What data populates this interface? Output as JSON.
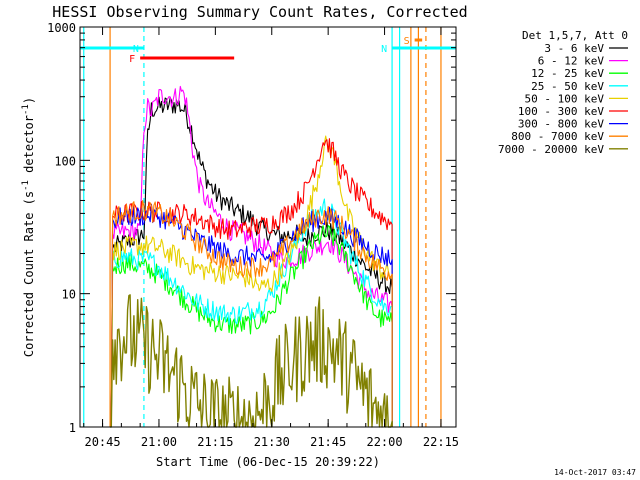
{
  "chart_data": {
    "type": "line",
    "title": "HESSI Observing Summary Count Rates, Corrected",
    "xlabel": "Start Time (06-Dec-15 20:39:22)",
    "ylabel_main": "Corrected Count Rate (s",
    "ylabel_sup1": "-1",
    "ylabel_mid": " detector",
    "ylabel_sup2": "-1",
    "ylabel_end": ")",
    "y_scale": "log",
    "xlim": [
      "20:39",
      "22:19"
    ],
    "ylim": [
      1,
      1000
    ],
    "x_ticks": [
      "20:45",
      "21:00",
      "21:15",
      "21:30",
      "21:45",
      "22:00",
      "22:15"
    ],
    "y_ticks": [
      "1",
      "10",
      "100",
      "1000"
    ],
    "grid": false,
    "legend_position": "right",
    "legend_header": "Det 1,5,7, Att 0",
    "data_start": "20:47",
    "data_end": "22:02",
    "series": [
      {
        "name": "3 - 6 keV",
        "color": "#000000",
        "points": [
          [
            "20:47",
            0
          ],
          [
            "20:48",
            22
          ],
          [
            "20:56",
            28
          ],
          [
            "20:57",
            150
          ],
          [
            "20:58",
            240
          ],
          [
            "21:00",
            250
          ],
          [
            "21:03",
            260
          ],
          [
            "21:05",
            265
          ],
          [
            "21:07",
            235
          ],
          [
            "21:09",
            160
          ],
          [
            "21:11",
            95
          ],
          [
            "21:13",
            70
          ],
          [
            "21:15",
            56
          ],
          [
            "21:18",
            47
          ],
          [
            "21:21",
            41
          ],
          [
            "21:24",
            37
          ],
          [
            "21:27",
            31
          ],
          [
            "21:30",
            28
          ],
          [
            "21:33",
            27
          ],
          [
            "21:36",
            28
          ],
          [
            "21:39",
            26
          ],
          [
            "21:42",
            29
          ],
          [
            "21:45",
            30
          ],
          [
            "21:48",
            26
          ],
          [
            "21:51",
            21
          ],
          [
            "21:54",
            17
          ],
          [
            "21:57",
            14
          ],
          [
            "22:00",
            12
          ],
          [
            "22:02",
            11
          ],
          [
            "22:02",
            0
          ]
        ]
      },
      {
        "name": "6 - 12 keV",
        "color": "#ff00ff",
        "points": [
          [
            "20:47",
            0
          ],
          [
            "20:48",
            28
          ],
          [
            "20:55",
            30
          ],
          [
            "20:56",
            180
          ],
          [
            "20:57",
            250
          ],
          [
            "20:58",
            230
          ],
          [
            "21:00",
            300
          ],
          [
            "21:02",
            310
          ],
          [
            "21:04",
            290
          ],
          [
            "21:06",
            330
          ],
          [
            "21:07",
            300
          ],
          [
            "21:08",
            200
          ],
          [
            "21:09",
            120
          ],
          [
            "21:10",
            80
          ],
          [
            "21:11",
            62
          ],
          [
            "21:13",
            47
          ],
          [
            "21:15",
            40
          ],
          [
            "21:17",
            34
          ],
          [
            "21:19",
            30
          ],
          [
            "21:22",
            28
          ],
          [
            "21:25",
            25
          ],
          [
            "21:28",
            22
          ],
          [
            "21:31",
            19
          ],
          [
            "21:34",
            18
          ],
          [
            "21:37",
            19
          ],
          [
            "21:40",
            21
          ],
          [
            "21:43",
            23
          ],
          [
            "21:45",
            25
          ],
          [
            "21:47",
            22
          ],
          [
            "21:50",
            17
          ],
          [
            "21:53",
            13
          ],
          [
            "21:56",
            10
          ],
          [
            "21:59",
            9
          ],
          [
            "22:02",
            8
          ],
          [
            "22:02",
            0
          ]
        ]
      },
      {
        "name": "12 - 25 keV",
        "color": "#00ff00",
        "points": [
          [
            "20:47",
            0
          ],
          [
            "20:48",
            16
          ],
          [
            "20:51",
            17
          ],
          [
            "20:55",
            16
          ],
          [
            "20:58",
            15
          ],
          [
            "21:01",
            13
          ],
          [
            "21:04",
            11
          ],
          [
            "21:07",
            9
          ],
          [
            "21:10",
            7.5
          ],
          [
            "21:13",
            6.5
          ],
          [
            "21:16",
            6
          ],
          [
            "21:19",
            5.8
          ],
          [
            "21:22",
            5.8
          ],
          [
            "21:25",
            6
          ],
          [
            "21:28",
            6.5
          ],
          [
            "21:31",
            8
          ],
          [
            "21:34",
            12
          ],
          [
            "21:37",
            16
          ],
          [
            "21:40",
            22
          ],
          [
            "21:43",
            27
          ],
          [
            "21:45",
            28
          ],
          [
            "21:47",
            25
          ],
          [
            "21:50",
            18
          ],
          [
            "21:53",
            12
          ],
          [
            "21:56",
            8
          ],
          [
            "21:59",
            6.5
          ],
          [
            "22:02",
            6
          ],
          [
            "22:02",
            0
          ]
        ]
      },
      {
        "name": "25 - 50 keV",
        "color": "#00ffff",
        "points": [
          [
            "20:47",
            0
          ],
          [
            "20:48",
            18
          ],
          [
            "20:51",
            19
          ],
          [
            "20:54",
            18
          ],
          [
            "20:57",
            18
          ],
          [
            "21:00",
            16
          ],
          [
            "21:03",
            13
          ],
          [
            "21:06",
            11
          ],
          [
            "21:09",
            9
          ],
          [
            "21:12",
            8
          ],
          [
            "21:15",
            7.5
          ],
          [
            "21:18",
            7
          ],
          [
            "21:21",
            7
          ],
          [
            "21:24",
            7.5
          ],
          [
            "21:27",
            8
          ],
          [
            "21:30",
            10
          ],
          [
            "21:33",
            15
          ],
          [
            "21:36",
            22
          ],
          [
            "21:39",
            32
          ],
          [
            "21:42",
            40
          ],
          [
            "21:44",
            45
          ],
          [
            "21:46",
            40
          ],
          [
            "21:48",
            30
          ],
          [
            "21:51",
            20
          ],
          [
            "21:54",
            14
          ],
          [
            "21:57",
            10
          ],
          [
            "22:00",
            8
          ],
          [
            "22:02",
            8
          ],
          [
            "22:02",
            0
          ]
        ]
      },
      {
        "name": "50 - 100 keV",
        "color": "#e8d000",
        "points": [
          [
            "20:47",
            0
          ],
          [
            "20:48",
            21
          ],
          [
            "20:51",
            22
          ],
          [
            "20:54",
            23
          ],
          [
            "20:57",
            23
          ],
          [
            "21:00",
            22
          ],
          [
            "21:03",
            20
          ],
          [
            "21:06",
            18
          ],
          [
            "21:09",
            16
          ],
          [
            "21:12",
            15
          ],
          [
            "21:15",
            14.5
          ],
          [
            "21:18",
            14
          ],
          [
            "21:21",
            13.5
          ],
          [
            "21:24",
            13
          ],
          [
            "21:27",
            11
          ],
          [
            "21:30",
            12
          ],
          [
            "21:33",
            16
          ],
          [
            "21:36",
            22
          ],
          [
            "21:39",
            35
          ],
          [
            "21:42",
            70
          ],
          [
            "21:44",
            130
          ],
          [
            "21:46",
            120
          ],
          [
            "21:48",
            70
          ],
          [
            "21:50",
            40
          ],
          [
            "21:53",
            26
          ],
          [
            "21:56",
            19
          ],
          [
            "21:59",
            15
          ],
          [
            "22:02",
            14
          ],
          [
            "22:02",
            0
          ]
        ]
      },
      {
        "name": "100 - 300 keV",
        "color": "#ff0000",
        "points": [
          [
            "20:47",
            0
          ],
          [
            "20:48",
            38
          ],
          [
            "20:51",
            40
          ],
          [
            "20:54",
            41
          ],
          [
            "20:57",
            42
          ],
          [
            "21:00",
            41
          ],
          [
            "21:03",
            40
          ],
          [
            "21:06",
            40
          ],
          [
            "21:09",
            38
          ],
          [
            "21:12",
            35
          ],
          [
            "21:15",
            32
          ],
          [
            "21:18",
            30
          ],
          [
            "21:21",
            30
          ],
          [
            "21:24",
            32
          ],
          [
            "21:27",
            32
          ],
          [
            "21:30",
            34
          ],
          [
            "21:33",
            38
          ],
          [
            "21:36",
            45
          ],
          [
            "21:39",
            60
          ],
          [
            "21:42",
            100
          ],
          [
            "21:44",
            145
          ],
          [
            "21:46",
            120
          ],
          [
            "21:48",
            90
          ],
          [
            "21:50",
            70
          ],
          [
            "21:53",
            55
          ],
          [
            "21:56",
            45
          ],
          [
            "21:59",
            38
          ],
          [
            "22:02",
            33
          ],
          [
            "22:02",
            0
          ]
        ]
      },
      {
        "name": "300 - 800 keV",
        "color": "#0000ff",
        "points": [
          [
            "20:47",
            0
          ],
          [
            "20:48",
            36
          ],
          [
            "20:51",
            38
          ],
          [
            "20:54",
            38
          ],
          [
            "20:57",
            39
          ],
          [
            "21:00",
            38
          ],
          [
            "21:03",
            35
          ],
          [
            "21:06",
            31
          ],
          [
            "21:09",
            27
          ],
          [
            "21:12",
            24
          ],
          [
            "21:15",
            22
          ],
          [
            "21:18",
            20
          ],
          [
            "21:21",
            19
          ],
          [
            "21:24",
            19
          ],
          [
            "21:27",
            18
          ],
          [
            "21:30",
            19
          ],
          [
            "21:33",
            23
          ],
          [
            "21:36",
            28
          ],
          [
            "21:39",
            33
          ],
          [
            "21:42",
            36
          ],
          [
            "21:45",
            38
          ],
          [
            "21:48",
            34
          ],
          [
            "21:51",
            28
          ],
          [
            "21:54",
            24
          ],
          [
            "21:57",
            21
          ],
          [
            "22:00",
            19
          ],
          [
            "22:02",
            18
          ],
          [
            "22:02",
            0
          ]
        ]
      },
      {
        "name": "800 - 7000 keV",
        "color": "#ff8000",
        "points": [
          [
            "20:47",
            0
          ],
          [
            "20:48",
            38
          ],
          [
            "20:51",
            40
          ],
          [
            "20:54",
            42
          ],
          [
            "20:57",
            42
          ],
          [
            "21:00",
            40
          ],
          [
            "21:03",
            36
          ],
          [
            "21:06",
            31
          ],
          [
            "21:09",
            26
          ],
          [
            "21:12",
            22
          ],
          [
            "21:15",
            19
          ],
          [
            "21:18",
            17
          ],
          [
            "21:21",
            16
          ],
          [
            "21:24",
            16
          ],
          [
            "21:27",
            16
          ],
          [
            "21:30",
            17
          ],
          [
            "21:33",
            21
          ],
          [
            "21:36",
            27
          ],
          [
            "21:39",
            33
          ],
          [
            "21:42",
            38
          ],
          [
            "21:45",
            39
          ],
          [
            "21:48",
            34
          ],
          [
            "21:51",
            27
          ],
          [
            "21:54",
            21
          ],
          [
            "21:57",
            17
          ],
          [
            "22:00",
            15
          ],
          [
            "22:02",
            14
          ],
          [
            "22:02",
            0
          ]
        ]
      },
      {
        "name": "7000 - 20000 keV",
        "color": "#808000",
        "points": [
          [
            "20:47",
            0
          ],
          [
            "20:48",
            4.5
          ],
          [
            "20:51",
            5
          ],
          [
            "20:54",
            4.5
          ],
          [
            "20:57",
            4
          ],
          [
            "21:00",
            3.2
          ],
          [
            "21:03",
            2.6
          ],
          [
            "21:06",
            2.1
          ],
          [
            "21:09",
            1.6
          ],
          [
            "21:12",
            1.3
          ],
          [
            "21:15",
            1.15
          ],
          [
            "21:18",
            1.1
          ],
          [
            "21:21",
            1.1
          ],
          [
            "21:24",
            1.15
          ],
          [
            "21:27",
            1.3
          ],
          [
            "21:30",
            1.8
          ],
          [
            "21:33",
            2.5
          ],
          [
            "21:36",
            3.2
          ],
          [
            "21:39",
            3.8
          ],
          [
            "21:42",
            4.3
          ],
          [
            "21:45",
            4.2
          ],
          [
            "21:48",
            3.4
          ],
          [
            "21:51",
            2.6
          ],
          [
            "21:54",
            1.9
          ],
          [
            "21:57",
            1.4
          ],
          [
            "22:00",
            1.15
          ],
          [
            "22:02",
            1.1
          ],
          [
            "22:02",
            0
          ]
        ]
      }
    ],
    "flags": [
      {
        "label": "N",
        "color": "#00ffff",
        "start": "20:39",
        "end": "20:56"
      },
      {
        "label": "F",
        "color": "#ff0000",
        "start": "20:55",
        "end": "21:20"
      },
      {
        "label": "N",
        "color": "#00ffff",
        "start": "22:02",
        "end": "22:19"
      },
      {
        "label": "S",
        "color": "#ff8000",
        "start": "22:08",
        "end": "22:10"
      }
    ],
    "vertical_lines": [
      {
        "time": "20:40",
        "color": "#00ffff",
        "style": "solid"
      },
      {
        "time": "20:47",
        "color": "#ff8000",
        "style": "solid"
      },
      {
        "time": "20:56",
        "color": "#00ffff",
        "style": "dashed"
      },
      {
        "time": "22:02",
        "color": "#00ffff",
        "style": "solid"
      },
      {
        "time": "22:04",
        "color": "#00ffff",
        "style": "solid"
      },
      {
        "time": "22:07",
        "color": "#ff8000",
        "style": "solid"
      },
      {
        "time": "22:09",
        "color": "#ff8000",
        "style": "solid"
      },
      {
        "time": "22:11",
        "color": "#ff8000",
        "style": "dashed"
      },
      {
        "time": "22:15",
        "color": "#ff8000",
        "style": "solid"
      }
    ]
  },
  "timestamp": "14-Oct-2017 03:47"
}
